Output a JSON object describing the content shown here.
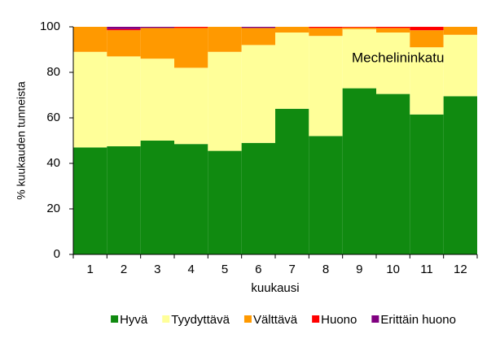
{
  "chart_data": {
    "type": "stacked_bar",
    "annotation": "Mechelininkatu",
    "x_label": "kuukausi",
    "y_label": "% kuukauden tunneista",
    "categories": [
      "1",
      "2",
      "3",
      "4",
      "5",
      "6",
      "7",
      "8",
      "9",
      "10",
      "11",
      "12"
    ],
    "series": [
      {
        "name": "Hyvä",
        "color": "#108a10",
        "values": [
          47,
          47.5,
          50,
          48.5,
          45.5,
          49,
          64,
          52,
          73,
          70.5,
          61.5,
          69.5
        ]
      },
      {
        "name": "Tyydyttävä",
        "color": "#ffff99",
        "values": [
          42,
          39.5,
          36,
          33.5,
          43.5,
          43,
          33.5,
          44,
          26,
          27,
          29.5,
          27
        ]
      },
      {
        "name": "Välttävä",
        "color": "#ff9900",
        "values": [
          11,
          11.5,
          13.5,
          17.5,
          11,
          7.5,
          2.5,
          3.5,
          0.7,
          2,
          7.5,
          3.5
        ]
      },
      {
        "name": "Huono",
        "color": "#ff0000",
        "values": [
          0,
          0.5,
          0,
          0.5,
          0,
          0,
          0,
          0.5,
          0.3,
          0.5,
          1.5,
          0
        ]
      },
      {
        "name": "Erittäin huono",
        "color": "#800080",
        "values": [
          0,
          1,
          0.5,
          0,
          0,
          0.5,
          0,
          0,
          0,
          0,
          0,
          0
        ]
      }
    ],
    "ylim": [
      0,
      100
    ],
    "yticks": [
      0,
      20,
      40,
      60,
      80,
      100
    ],
    "legend": "bottom"
  }
}
